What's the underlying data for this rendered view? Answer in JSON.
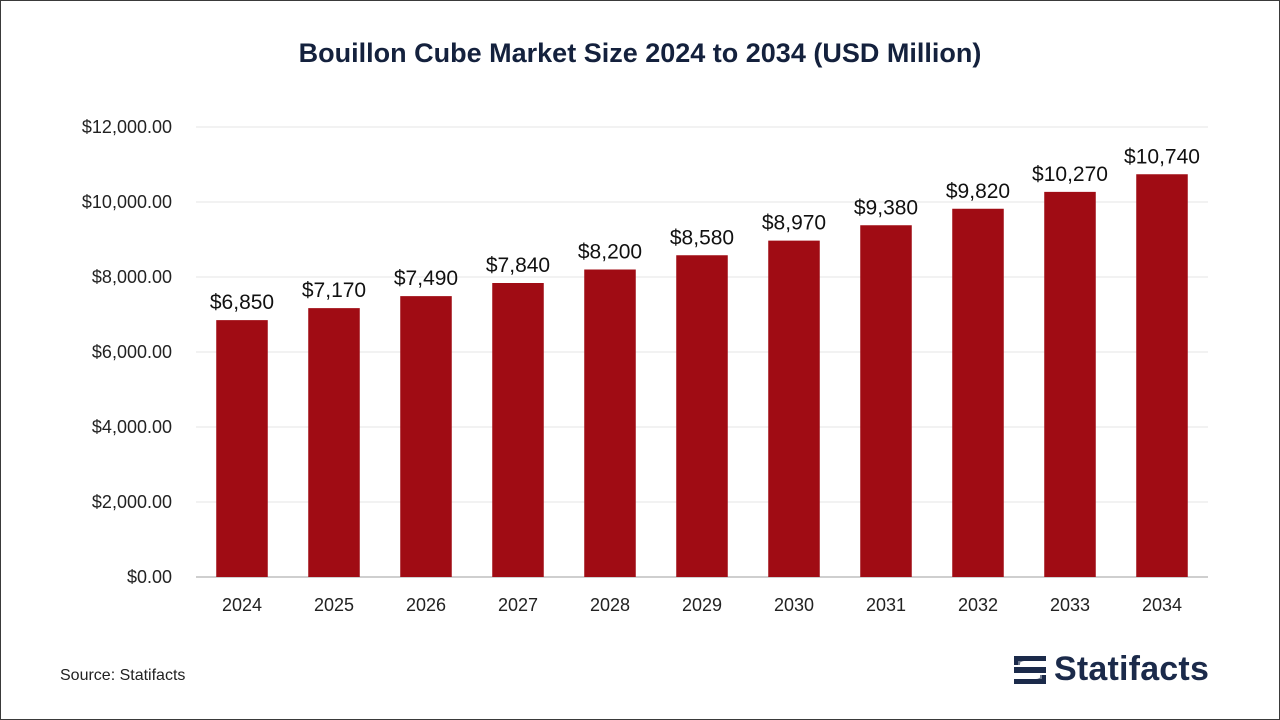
{
  "chart_data": {
    "type": "bar",
    "title": "Bouillon Cube Market Size 2024 to 2034 (USD Million)",
    "xlabel": "",
    "ylabel": "",
    "categories": [
      "2024",
      "2025",
      "2026",
      "2027",
      "2028",
      "2029",
      "2030",
      "2031",
      "2032",
      "2033",
      "2034"
    ],
    "values": [
      6850,
      7170,
      7490,
      7840,
      8200,
      8580,
      8970,
      9380,
      9820,
      10270,
      10740
    ],
    "data_labels": [
      "$6,850",
      "$7,170",
      "$7,490",
      "$7,840",
      "$8,200",
      "$8,580",
      "$8,970",
      "$9,380",
      "$9,820",
      "$10,270",
      "$10,740"
    ],
    "ylim": [
      0,
      12000
    ],
    "yticks": [
      0,
      2000,
      4000,
      6000,
      8000,
      10000,
      12000
    ],
    "ytick_labels": [
      "$0.00",
      "$2,000.00",
      "$4,000.00",
      "$6,000.00",
      "$8,000.00",
      "$10,000.00",
      "$12,000.00"
    ],
    "grid": true,
    "legend": "none",
    "bar_color": "#a00c14"
  },
  "footer": {
    "source": "Source: Statifacts"
  },
  "logo": {
    "text": "Statifacts",
    "icon": "statifacts-logo-icon"
  }
}
